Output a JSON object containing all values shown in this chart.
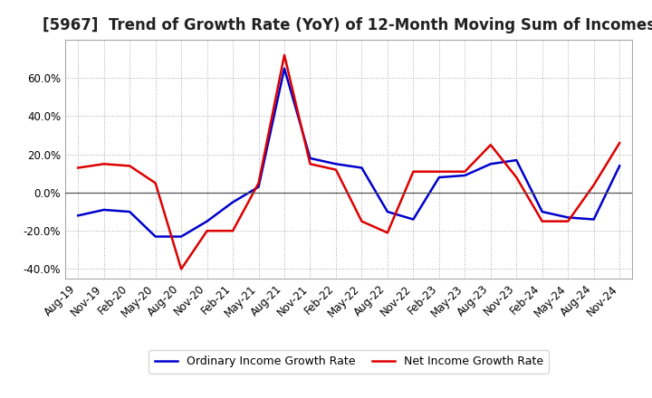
{
  "title": "[5967]  Trend of Growth Rate (YoY) of 12-Month Moving Sum of Incomes",
  "x_labels": [
    "Aug-19",
    "Nov-19",
    "Feb-20",
    "May-20",
    "Aug-20",
    "Nov-20",
    "Feb-21",
    "May-21",
    "Aug-21",
    "Nov-21",
    "Feb-22",
    "May-22",
    "Aug-22",
    "Nov-22",
    "Feb-23",
    "May-23",
    "Aug-23",
    "Nov-23",
    "Feb-24",
    "May-24",
    "Aug-24",
    "Nov-24"
  ],
  "ordinary_income": [
    -12,
    -9,
    -10,
    -23,
    -23,
    -15,
    -5,
    3,
    65,
    18,
    15,
    13,
    -10,
    -14,
    8,
    9,
    15,
    17,
    -10,
    -13,
    -14,
    14
  ],
  "net_income": [
    13,
    15,
    14,
    5,
    -40,
    -20,
    -20,
    5,
    72,
    15,
    12,
    -15,
    -21,
    11,
    11,
    11,
    25,
    8,
    -15,
    -15,
    4,
    26
  ],
  "ylim": [
    -45,
    80
  ],
  "yticks": [
    -40,
    -20,
    0,
    20,
    40,
    60
  ],
  "ordinary_color": "#0000CC",
  "net_color": "#DD0000",
  "background_color": "#FFFFFF",
  "grid_color": "#AAAAAA",
  "legend_ordinary": "Ordinary Income Growth Rate",
  "legend_net": "Net Income Growth Rate",
  "title_fontsize": 12,
  "tick_fontsize": 8.5
}
